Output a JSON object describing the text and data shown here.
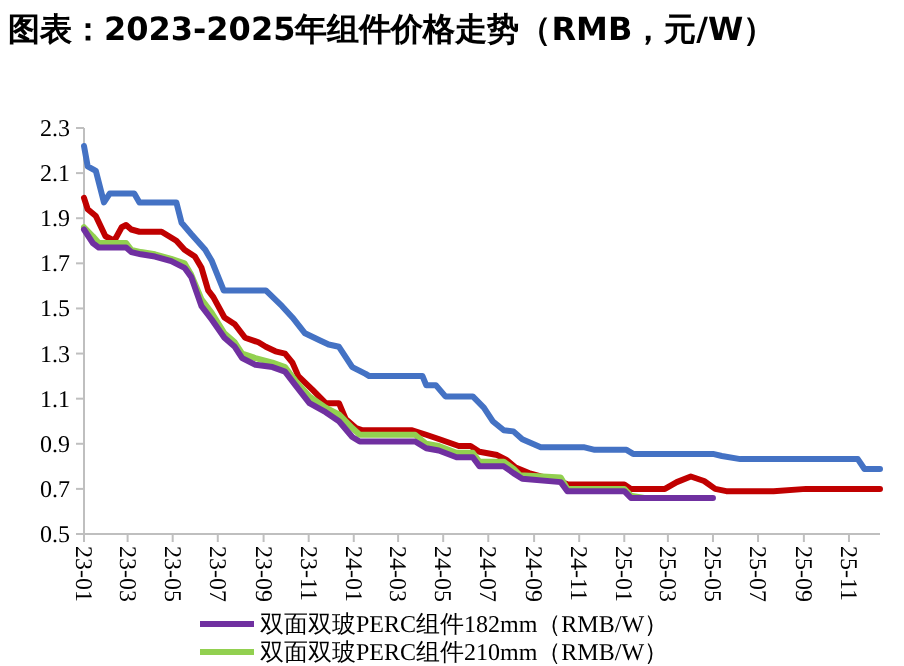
{
  "chart_data": {
    "type": "line",
    "title": "图表：2023-2025年组件价格走势（RMB，元/W）",
    "xlim": [
      "2023-01-01",
      "2025-12-13"
    ],
    "xticks": [
      {
        "value": "2023-01",
        "label": "23-01"
      },
      {
        "value": "2023-03",
        "label": "23-03"
      },
      {
        "value": "2023-05",
        "label": "23-05"
      },
      {
        "value": "2023-07",
        "label": "23-07"
      },
      {
        "value": "2023-09",
        "label": "23-09"
      },
      {
        "value": "2023-11",
        "label": "23-11"
      },
      {
        "value": "2024-01",
        "label": "24-01"
      },
      {
        "value": "2024-03",
        "label": "24-03"
      },
      {
        "value": "2024-05",
        "label": "24-05"
      },
      {
        "value": "2024-07",
        "label": "24-07"
      },
      {
        "value": "2024-09",
        "label": "24-09"
      },
      {
        "value": "2024-11",
        "label": "24-11"
      },
      {
        "value": "2025-01",
        "label": "25-01"
      },
      {
        "value": "2025-03",
        "label": "25-03"
      },
      {
        "value": "2025-05",
        "label": "25-05"
      },
      {
        "value": "2025-07",
        "label": "25-07"
      },
      {
        "value": "2025-09",
        "label": "25-09"
      },
      {
        "value": "2025-11",
        "label": "25-11"
      }
    ],
    "ylim": [
      0.5,
      2.3
    ],
    "yticks": [
      0.5,
      0.7,
      0.9,
      1.1,
      1.3,
      1.5,
      1.7,
      1.9,
      2.1,
      2.3
    ],
    "grid": false,
    "legend": "bottom",
    "marker": "none",
    "line_style": "solid",
    "series": [
      {
        "color": "#4472c4",
        "x": [
          "2023-01-01",
          "2023-01-06",
          "2023-01-17",
          "2023-01-28",
          "2023-02-05",
          "2023-03-10",
          "2023-03-17",
          "2023-05-06",
          "2023-05-13",
          "2023-05-26",
          "2023-06-14",
          "2023-06-23",
          "2023-07-09",
          "2023-09-04",
          "2023-09-26",
          "2023-10-10",
          "2023-10-27",
          "2023-11-15",
          "2023-11-28",
          "2023-12-12",
          "2023-12-30",
          "2024-01-17",
          "2024-01-22",
          "2024-04-03",
          "2024-04-08",
          "2024-04-21",
          "2024-05-04",
          "2024-06-10",
          "2024-06-25",
          "2024-07-07",
          "2024-07-22",
          "2024-08-04",
          "2024-08-16",
          "2024-09-10",
          "2024-11-07",
          "2024-11-22",
          "2025-01-04",
          "2025-01-13",
          "2025-05-01",
          "2025-05-13",
          "2025-06-07",
          "2025-11-13",
          "2025-11-22",
          "2025-12-13"
        ],
        "values": [
          2.22,
          2.13,
          2.11,
          1.97,
          2.01,
          2.01,
          1.97,
          1.97,
          1.88,
          1.83,
          1.76,
          1.71,
          1.58,
          1.58,
          1.51,
          1.46,
          1.39,
          1.36,
          1.34,
          1.33,
          1.24,
          1.21,
          1.2,
          1.2,
          1.16,
          1.16,
          1.11,
          1.11,
          1.06,
          1.0,
          0.96,
          0.955,
          0.92,
          0.885,
          0.885,
          0.873,
          0.873,
          0.855,
          0.855,
          0.846,
          0.832,
          0.832,
          0.788,
          0.788
        ]
      },
      {
        "color": "#c00000",
        "x": [
          "2023-01-01",
          "2023-01-06",
          "2023-01-17",
          "2023-01-30",
          "2023-02-11",
          "2023-02-21",
          "2023-02-27",
          "2023-03-06",
          "2023-03-17",
          "2023-04-16",
          "2023-05-06",
          "2023-05-17",
          "2023-05-31",
          "2023-06-09",
          "2023-06-18",
          "2023-06-25",
          "2023-07-10",
          "2023-07-24",
          "2023-08-07",
          "2023-08-25",
          "2023-09-04",
          "2023-09-17",
          "2023-09-30",
          "2023-10-10",
          "2023-10-18",
          "2023-11-06",
          "2023-11-24",
          "2023-12-12",
          "2023-12-21",
          "2024-01-04",
          "2024-01-13",
          "2024-03-20",
          "2024-04-08",
          "2024-04-26",
          "2024-05-22",
          "2024-06-07",
          "2024-06-19",
          "2024-07-13",
          "2024-07-25",
          "2024-08-07",
          "2024-08-25",
          "2024-09-10",
          "2024-10-01",
          "2024-10-16",
          "2025-01-01",
          "2025-01-10",
          "2025-02-25",
          "2025-03-13",
          "2025-04-01",
          "2025-04-19",
          "2025-05-04",
          "2025-05-19",
          "2025-07-22",
          "2025-09-04",
          "2025-12-13"
        ],
        "values": [
          1.99,
          1.94,
          1.91,
          1.82,
          1.8,
          1.86,
          1.87,
          1.85,
          1.84,
          1.84,
          1.8,
          1.76,
          1.73,
          1.68,
          1.58,
          1.55,
          1.46,
          1.43,
          1.37,
          1.35,
          1.33,
          1.31,
          1.3,
          1.26,
          1.2,
          1.14,
          1.08,
          1.08,
          1.01,
          0.97,
          0.96,
          0.96,
          0.94,
          0.92,
          0.89,
          0.89,
          0.865,
          0.85,
          0.83,
          0.795,
          0.77,
          0.755,
          0.74,
          0.72,
          0.72,
          0.7,
          0.7,
          0.73,
          0.755,
          0.735,
          0.7,
          0.69,
          0.69,
          0.7,
          0.7
        ]
      },
      {
        "name": "双面双玻PERC组件210mm（RMB/W）",
        "color": "#92d050",
        "x": [
          "2023-01-01",
          "2023-01-13",
          "2023-01-21",
          "2023-02-27",
          "2023-03-06",
          "2023-03-19",
          "2023-04-07",
          "2023-04-29",
          "2023-05-17",
          "2023-05-26",
          "2023-06-09",
          "2023-06-23",
          "2023-07-10",
          "2023-07-24",
          "2023-08-03",
          "2023-08-21",
          "2023-09-13",
          "2023-09-30",
          "2023-10-14",
          "2023-11-02",
          "2023-11-24",
          "2023-12-12",
          "2023-12-30",
          "2024-01-09",
          "2024-03-24",
          "2024-04-08",
          "2024-04-25",
          "2024-05-19",
          "2024-06-10",
          "2024-06-19",
          "2024-07-22",
          "2024-08-04",
          "2024-08-13",
          "2024-10-07",
          "2024-10-16",
          "2025-01-01",
          "2025-01-10",
          "2025-01-28"
        ],
        "values": [
          1.86,
          1.82,
          1.79,
          1.79,
          1.76,
          1.75,
          1.74,
          1.72,
          1.7,
          1.65,
          1.54,
          1.48,
          1.39,
          1.35,
          1.3,
          1.28,
          1.26,
          1.24,
          1.18,
          1.11,
          1.06,
          1.03,
          0.97,
          0.94,
          0.94,
          0.9,
          0.89,
          0.86,
          0.86,
          0.82,
          0.82,
          0.79,
          0.76,
          0.75,
          0.7,
          0.7,
          0.67,
          0.66
        ]
      },
      {
        "name": "双面双玻PERC组件182mm（RMB/W）",
        "color": "#7030a0",
        "x": [
          "2023-01-01",
          "2023-01-13",
          "2023-01-21",
          "2023-02-27",
          "2023-03-06",
          "2023-03-19",
          "2023-04-07",
          "2023-04-29",
          "2023-05-17",
          "2023-05-26",
          "2023-06-09",
          "2023-06-23",
          "2023-07-10",
          "2023-07-24",
          "2023-08-03",
          "2023-08-21",
          "2023-09-13",
          "2023-09-30",
          "2023-10-14",
          "2023-11-02",
          "2023-11-24",
          "2023-12-12",
          "2023-12-30",
          "2024-01-09",
          "2024-03-24",
          "2024-04-08",
          "2024-04-25",
          "2024-05-19",
          "2024-06-10",
          "2024-06-19",
          "2024-07-22",
          "2024-08-04",
          "2024-08-16",
          "2024-10-07",
          "2024-10-16",
          "2025-01-01",
          "2025-01-10",
          "2025-05-01"
        ],
        "values": [
          1.85,
          1.79,
          1.77,
          1.77,
          1.75,
          1.74,
          1.73,
          1.71,
          1.68,
          1.64,
          1.51,
          1.45,
          1.37,
          1.33,
          1.28,
          1.25,
          1.24,
          1.22,
          1.16,
          1.08,
          1.04,
          1.0,
          0.93,
          0.91,
          0.91,
          0.88,
          0.87,
          0.84,
          0.84,
          0.8,
          0.8,
          0.77,
          0.745,
          0.73,
          0.69,
          0.69,
          0.66,
          0.66
        ]
      }
    ]
  }
}
